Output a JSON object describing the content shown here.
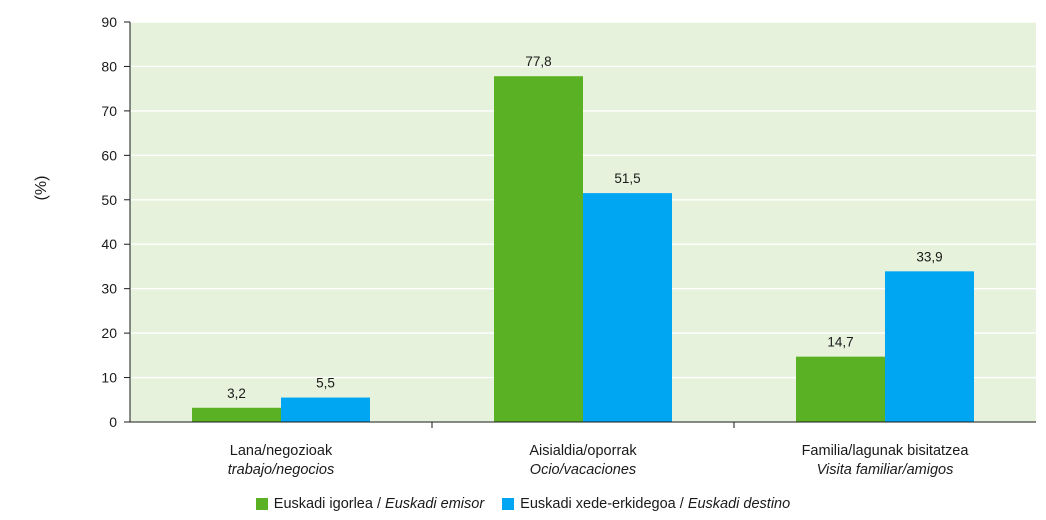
{
  "chart_data": {
    "type": "bar",
    "ylabel": "(%)",
    "ylim": [
      0,
      90
    ],
    "yticks": [
      0,
      10,
      20,
      30,
      40,
      50,
      60,
      70,
      80,
      90
    ],
    "categories": [
      {
        "line1": "Lana/negozioak",
        "line2": "trabajo/negocios"
      },
      {
        "line1": "Aisialdia/oporrak",
        "line2": "Ocio/vacaciones"
      },
      {
        "line1": "Familia/lagunak bisitatzea",
        "line2": "Visita familiar/amigos"
      }
    ],
    "series": [
      {
        "name": "Euskadi igorlea / ",
        "name_italic": "Euskadi emisor",
        "color": "#5bb124",
        "values": [
          3.2,
          77.8,
          14.7
        ],
        "labels": [
          "3,2",
          "77,8",
          "14,7"
        ]
      },
      {
        "name": "Euskadi xede-erkidegoa / ",
        "name_italic": "Euskadi destino",
        "color": "#00a6f2",
        "values": [
          5.5,
          51.5,
          33.9
        ],
        "labels": [
          "5,5",
          "51,5",
          "33,9"
        ]
      }
    ],
    "plot_background": "#e6f2dc",
    "grid": true,
    "grid_color": "#ffffff",
    "legend_position": "bottom"
  }
}
